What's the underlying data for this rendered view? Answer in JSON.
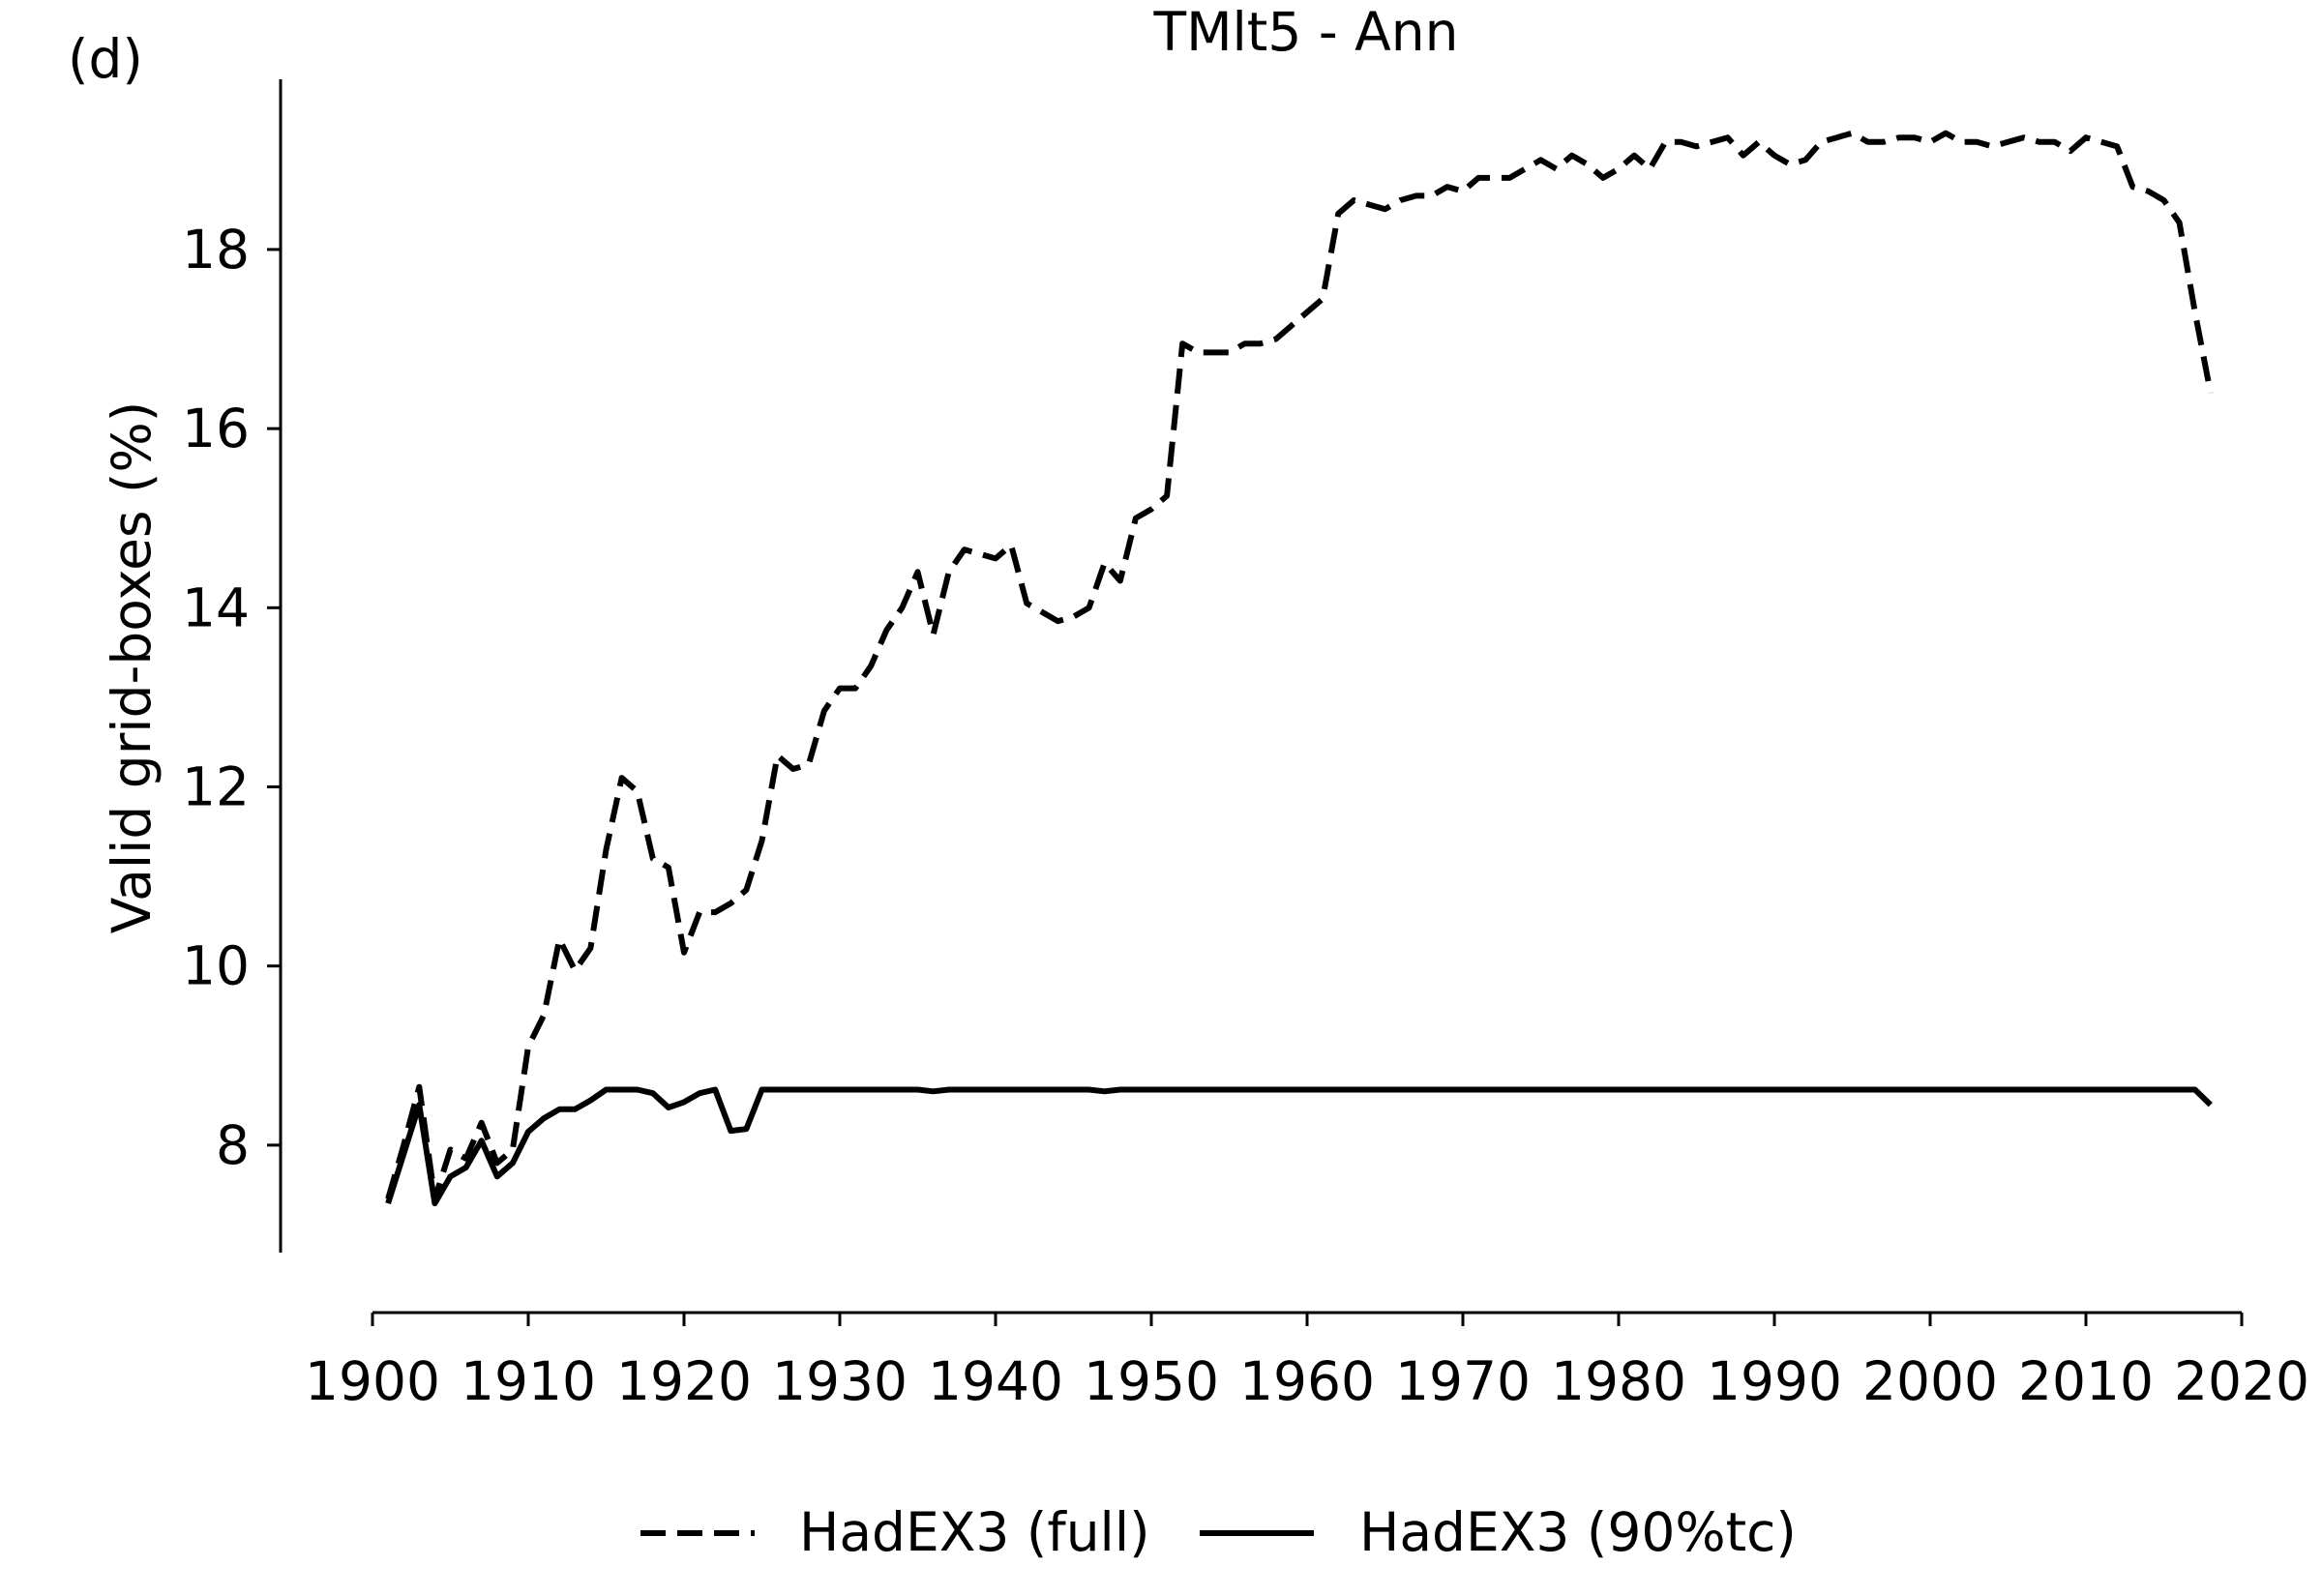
{
  "panel_label": "(d)",
  "chart_data": {
    "type": "line",
    "title": "TMlt5 - Ann",
    "xlabel": "",
    "ylabel": "Valid grid-boxes (%)",
    "xlim": [
      1900,
      2020
    ],
    "ylim": [
      6.8,
      19.9
    ],
    "x_ticks": [
      1900,
      1910,
      1920,
      1930,
      1940,
      1950,
      1960,
      1970,
      1980,
      1990,
      2000,
      2010,
      2020
    ],
    "y_ticks": [
      8,
      10,
      12,
      14,
      16,
      18
    ],
    "grid": false,
    "legend_position": "bottom-center",
    "x": [
      1901,
      1902,
      1903,
      1904,
      1905,
      1906,
      1907,
      1908,
      1909,
      1910,
      1911,
      1912,
      1913,
      1914,
      1915,
      1916,
      1917,
      1918,
      1919,
      1920,
      1921,
      1922,
      1923,
      1924,
      1925,
      1926,
      1927,
      1928,
      1929,
      1930,
      1931,
      1932,
      1933,
      1934,
      1935,
      1936,
      1937,
      1938,
      1939,
      1940,
      1941,
      1942,
      1943,
      1944,
      1945,
      1946,
      1947,
      1948,
      1949,
      1950,
      1951,
      1952,
      1953,
      1954,
      1955,
      1956,
      1957,
      1958,
      1959,
      1960,
      1961,
      1962,
      1963,
      1964,
      1965,
      1966,
      1967,
      1968,
      1969,
      1970,
      1971,
      1972,
      1973,
      1974,
      1975,
      1976,
      1977,
      1978,
      1979,
      1980,
      1981,
      1982,
      1983,
      1984,
      1985,
      1986,
      1987,
      1988,
      1989,
      1990,
      1991,
      1992,
      1993,
      1994,
      1995,
      1996,
      1997,
      1998,
      1999,
      2000,
      2001,
      2002,
      2003,
      2004,
      2005,
      2006,
      2007,
      2008,
      2009,
      2010,
      2011,
      2012,
      2013,
      2014,
      2015,
      2016,
      2017,
      2018
    ],
    "series": [
      {
        "name": "HadEX3 (full)",
        "style": "dashed",
        "color": "#000000",
        "values": [
          7.4,
          8.0,
          8.65,
          7.4,
          7.95,
          7.85,
          8.25,
          7.8,
          7.95,
          9.1,
          9.45,
          10.3,
          9.95,
          10.2,
          11.3,
          12.1,
          11.95,
          11.2,
          11.1,
          10.15,
          10.6,
          10.6,
          10.7,
          10.85,
          11.4,
          12.35,
          12.2,
          12.25,
          12.85,
          13.1,
          13.1,
          13.35,
          13.75,
          14.0,
          14.4,
          13.7,
          14.4,
          14.65,
          14.6,
          14.55,
          14.7,
          14.05,
          13.95,
          13.85,
          13.9,
          14.0,
          14.5,
          14.3,
          15.0,
          15.1,
          15.25,
          16.95,
          16.85,
          16.85,
          16.85,
          16.95,
          16.95,
          17.0,
          17.15,
          17.3,
          17.45,
          18.4,
          18.55,
          18.5,
          18.45,
          18.55,
          18.6,
          18.6,
          18.7,
          18.65,
          18.8,
          18.8,
          18.8,
          18.9,
          19.0,
          18.9,
          19.05,
          18.95,
          18.8,
          18.9,
          19.05,
          18.9,
          19.2,
          19.2,
          19.15,
          19.2,
          19.25,
          19.05,
          19.2,
          19.05,
          18.95,
          19.0,
          19.2,
          19.25,
          19.3,
          19.2,
          19.2,
          19.25,
          19.25,
          19.2,
          19.3,
          19.2,
          19.2,
          19.15,
          19.2,
          19.25,
          19.2,
          19.2,
          19.1,
          19.25,
          19.2,
          19.15,
          18.7,
          18.65,
          18.55,
          18.3,
          17.3,
          16.4
        ]
      },
      {
        "name": "HadEX3 (90%tc)",
        "style": "solid",
        "color": "#000000",
        "values": [
          7.35,
          7.9,
          8.45,
          7.35,
          7.65,
          7.75,
          8.05,
          7.65,
          7.8,
          8.15,
          8.3,
          8.4,
          8.4,
          8.5,
          8.62,
          8.62,
          8.62,
          8.58,
          8.42,
          8.48,
          8.58,
          8.62,
          8.16,
          8.18,
          8.62,
          8.62,
          8.62,
          8.62,
          8.62,
          8.62,
          8.62,
          8.62,
          8.62,
          8.62,
          8.62,
          8.6,
          8.62,
          8.62,
          8.62,
          8.62,
          8.62,
          8.62,
          8.62,
          8.62,
          8.62,
          8.62,
          8.6,
          8.62,
          8.62,
          8.62,
          8.62,
          8.62,
          8.62,
          8.62,
          8.62,
          8.62,
          8.62,
          8.62,
          8.62,
          8.62,
          8.62,
          8.62,
          8.62,
          8.62,
          8.62,
          8.62,
          8.62,
          8.62,
          8.62,
          8.62,
          8.62,
          8.62,
          8.62,
          8.62,
          8.62,
          8.62,
          8.62,
          8.62,
          8.62,
          8.62,
          8.62,
          8.62,
          8.62,
          8.62,
          8.62,
          8.62,
          8.62,
          8.62,
          8.62,
          8.62,
          8.62,
          8.62,
          8.62,
          8.62,
          8.62,
          8.62,
          8.62,
          8.62,
          8.62,
          8.62,
          8.62,
          8.62,
          8.62,
          8.62,
          8.62,
          8.62,
          8.62,
          8.62,
          8.62,
          8.62,
          8.62,
          8.62,
          8.62,
          8.62,
          8.62,
          8.62,
          8.62,
          8.45
        ]
      }
    ]
  }
}
